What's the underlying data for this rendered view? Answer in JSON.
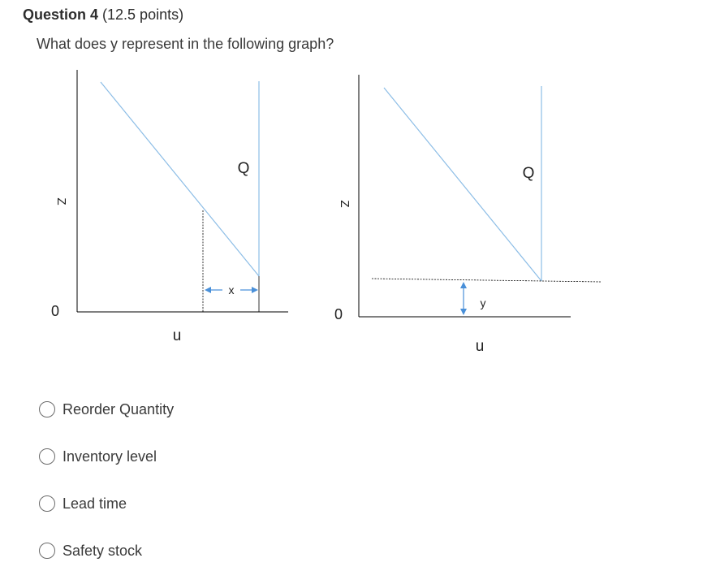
{
  "question": {
    "label": "Question 4",
    "points": "(12.5 points)",
    "text": "What does y represent in the following graph?"
  },
  "graph_left": {
    "y_axis_label": "Z",
    "origin_label": "0",
    "x_axis_label": "u",
    "line_label": "Q",
    "interval_label": "x"
  },
  "graph_right": {
    "y_axis_label": "Z",
    "origin_label": "0",
    "x_axis_label": "u",
    "line_label": "Q",
    "interval_label": "y"
  },
  "options": [
    {
      "label": "Reorder Quantity"
    },
    {
      "label": "Inventory level"
    },
    {
      "label": "Lead time"
    },
    {
      "label": "Safety stock"
    }
  ],
  "colors": {
    "line": "#8cbde6",
    "arrow": "#4a90d9",
    "axis": "#000000"
  }
}
